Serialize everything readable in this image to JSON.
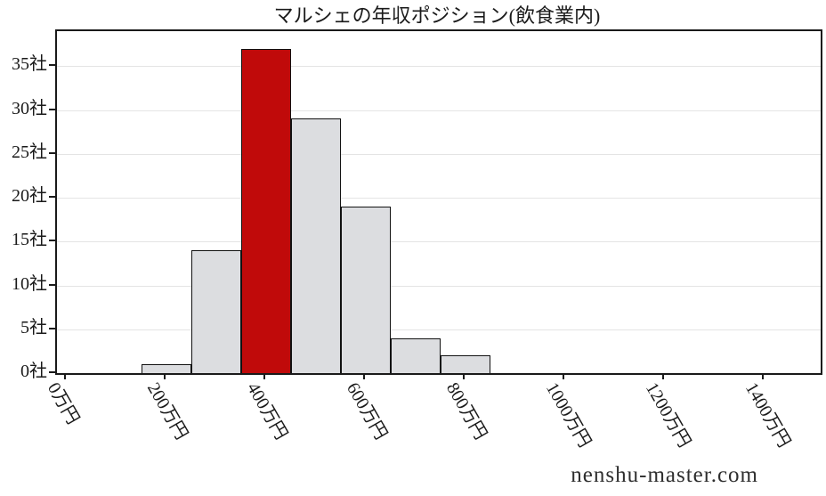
{
  "figure": {
    "title": "マルシェの年収ポジション(飲食業内)",
    "watermark": "nenshu-master.com"
  },
  "chart_data": {
    "type": "bar",
    "subtype": "histogram",
    "title": "マルシェの年収ポジション(飲食業内)",
    "x_unit": "万円",
    "y_unit": "社",
    "bin_centers": [
      200,
      300,
      400,
      500,
      600,
      700,
      800
    ],
    "values": [
      1,
      14,
      37,
      29,
      19,
      4,
      2
    ],
    "bar_width_x": 100,
    "highlight_index": 2,
    "highlight_color": "#c00a0a",
    "bar_color": "#dcdde0",
    "bar_edge_color": "#111111",
    "x_ticks": [
      0,
      200,
      400,
      600,
      800,
      1000,
      1200,
      1400
    ],
    "x_tick_labels": [
      "0万円",
      "200万円",
      "400万円",
      "600万円",
      "800万円",
      "1000万円",
      "1200万円",
      "1400万円"
    ],
    "y_ticks": [
      0,
      5,
      10,
      15,
      20,
      25,
      30,
      35
    ],
    "y_tick_labels": [
      "0社",
      "5社",
      "10社",
      "15社",
      "20社",
      "25社",
      "30社",
      "35社"
    ],
    "xlim": [
      -20,
      1513
    ],
    "ylim": [
      0,
      39
    ],
    "grid": "horizontal",
    "legend": "none"
  }
}
